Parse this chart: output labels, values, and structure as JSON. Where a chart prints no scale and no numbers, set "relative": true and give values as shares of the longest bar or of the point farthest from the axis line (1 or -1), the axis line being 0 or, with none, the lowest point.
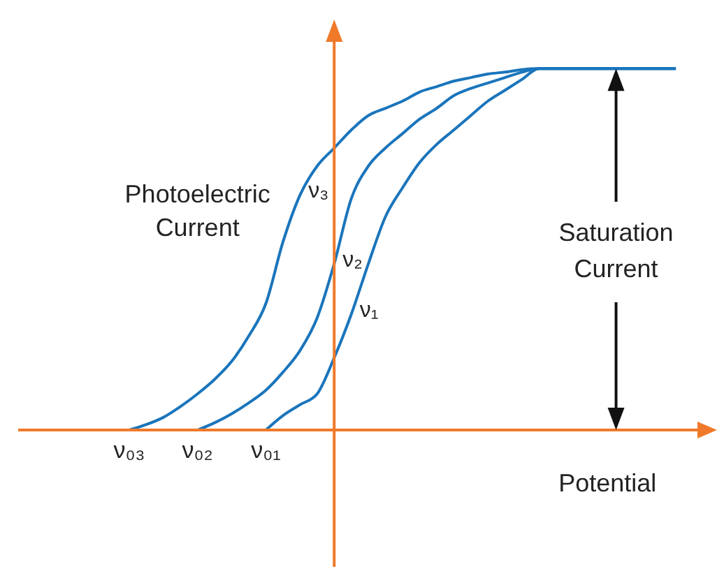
{
  "chart_data": {
    "type": "line",
    "relative": true,
    "marker": "none",
    "xlabel": "Potential",
    "ylabel": "Photoelectric Current",
    "categories": [
      null,
      null,
      null,
      null,
      null,
      null,
      "ν₀₃",
      null,
      null,
      null,
      "ν₀₂",
      null,
      null,
      null,
      "ν₀₁",
      null,
      null,
      null,
      null,
      null,
      null,
      null,
      null,
      null,
      null,
      null,
      null,
      null,
      null,
      null,
      null,
      null,
      null,
      null,
      null,
      null,
      null,
      null,
      null,
      null,
      null
    ],
    "series": [
      {
        "name": "ν₃",
        "color": "#1a75bc",
        "values": [
          null,
          null,
          null,
          null,
          null,
          null,
          0,
          0.015,
          0.035,
          0.065,
          0.1,
          0.14,
          0.19,
          0.26,
          0.35,
          0.52,
          0.65,
          0.73,
          0.78,
          0.83,
          0.87,
          0.89,
          0.91,
          0.935,
          0.95,
          0.965,
          0.975,
          0.985,
          0.99,
          0.997,
          1,
          1,
          1,
          1,
          1,
          1,
          1,
          1,
          1,
          null,
          null
        ]
      },
      {
        "name": "ν₂",
        "color": "#1a75bc",
        "values": [
          null,
          null,
          null,
          null,
          null,
          null,
          null,
          null,
          null,
          null,
          0,
          0.02,
          0.045,
          0.075,
          0.11,
          0.16,
          0.22,
          0.31,
          0.46,
          0.64,
          0.73,
          0.78,
          0.82,
          0.86,
          0.89,
          0.925,
          0.945,
          0.96,
          0.975,
          0.99,
          1,
          1,
          1,
          1,
          1,
          1,
          1,
          1,
          1,
          null,
          null
        ]
      },
      {
        "name": "ν₁",
        "color": "#1a75bc",
        "values": [
          null,
          null,
          null,
          null,
          null,
          null,
          null,
          null,
          null,
          null,
          null,
          null,
          null,
          null,
          0,
          0.04,
          0.07,
          0.1,
          0.2,
          0.32,
          0.46,
          0.59,
          0.67,
          0.74,
          0.79,
          0.83,
          0.87,
          0.91,
          0.94,
          0.97,
          1,
          1,
          1,
          1,
          1,
          1,
          1,
          1,
          1,
          null,
          null
        ]
      }
    ],
    "annotations": [
      "Saturation Current"
    ]
  }
}
